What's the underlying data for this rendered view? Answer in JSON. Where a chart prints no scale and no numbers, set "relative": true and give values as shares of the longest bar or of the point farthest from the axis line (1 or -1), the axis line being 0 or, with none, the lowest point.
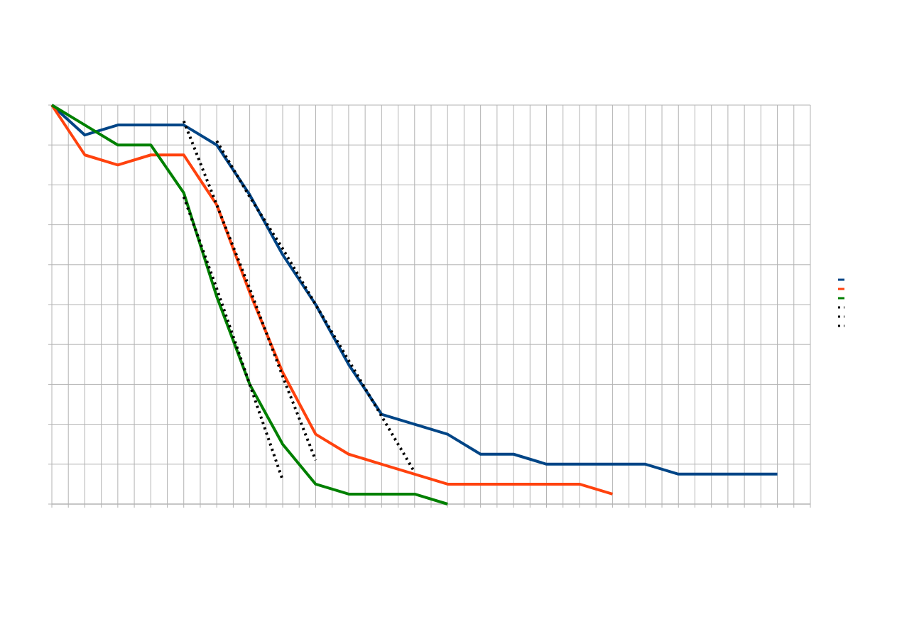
{
  "chart_data": {
    "type": "line",
    "relative": true,
    "categories": [
      null,
      null,
      null,
      null,
      null,
      null,
      null,
      null,
      null,
      null,
      null,
      null,
      null,
      null,
      null,
      null,
      null,
      null,
      null,
      null,
      null,
      null,
      null,
      null
    ],
    "grid": true,
    "series": [
      {
        "color": "#004586",
        "values": [
          1,
          0.925,
          0.95,
          0.95,
          0.95,
          0.9,
          0.775,
          0.625,
          0.5,
          0.35,
          0.225,
          0.2,
          0.175,
          0.125,
          0.125,
          0.1,
          0.1,
          0.1,
          0.1,
          0.075,
          0.075,
          0.075,
          0.075,
          null
        ]
      },
      {
        "color": "#ff420e",
        "values": [
          1,
          0.875,
          0.85,
          0.875,
          0.875,
          0.75,
          0.53,
          0.33,
          0.175,
          0.125,
          0.1,
          0.075,
          0.05,
          0.05,
          0.05,
          0.05,
          0.05,
          0.025,
          null,
          null,
          null,
          null,
          null,
          null
        ]
      },
      {
        "color": "#008000",
        "values": [
          1,
          0.95,
          0.9,
          0.9,
          0.78,
          0.52,
          0.3,
          0.15,
          0.05,
          0.025,
          0.025,
          0.025,
          0,
          null,
          null,
          null,
          null,
          null,
          null,
          null,
          null,
          null,
          null,
          null
        ]
      },
      {
        "type": "line",
        "color": "#000000",
        "line_style": "dotted",
        "values": [
          null,
          null,
          null,
          null,
          0.77,
          0.54,
          0.3,
          0.06,
          null,
          null,
          null,
          null,
          null,
          null,
          null,
          null,
          null,
          null,
          null,
          null,
          null,
          null,
          null,
          null
        ]
      },
      {
        "type": "line",
        "color": "#000000",
        "line_style": "dotted",
        "values": [
          null,
          null,
          null,
          null,
          0.96,
          0.75,
          0.54,
          0.32,
          0.11,
          null,
          null,
          null,
          null,
          null,
          null,
          null,
          null,
          null,
          null,
          null,
          null,
          null,
          null,
          null
        ]
      },
      {
        "type": "line",
        "color": "#000000",
        "line_style": "dotted",
        "values": [
          null,
          null,
          null,
          null,
          null,
          0.91,
          0.77,
          0.64,
          0.5,
          0.36,
          0.22,
          0.08,
          null,
          null,
          null,
          null,
          null,
          null,
          null,
          null,
          null,
          null,
          null,
          null
        ]
      }
    ]
  }
}
